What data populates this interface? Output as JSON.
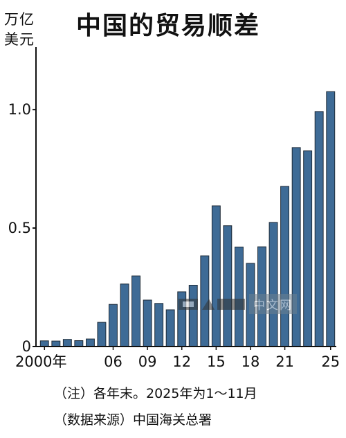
{
  "title": "中国的贸易顺差",
  "unit_label": "万亿\n美元",
  "notes": {
    "note1": "（注）各年末。2025年为1～11月",
    "note2": "（数据来源）中国海关总署"
  },
  "watermark": {
    "text": "中文网",
    "logo": "日经"
  },
  "colors": {
    "bar_fill": "#3e6b96",
    "bar_stroke": "#1e2a36",
    "axis": "#111111"
  },
  "chart_data": {
    "type": "bar",
    "title": "中国的贸易顺差",
    "ylabel": "万亿美元",
    "xlabel": "",
    "ylim": [
      0,
      1.1
    ],
    "grid": false,
    "x": [
      2000,
      2001,
      2002,
      2003,
      2004,
      2005,
      2006,
      2007,
      2008,
      2009,
      2010,
      2011,
      2012,
      2013,
      2014,
      2015,
      2016,
      2017,
      2018,
      2019,
      2020,
      2021,
      2022,
      2023,
      2024,
      2025
    ],
    "values": [
      0.024,
      0.023,
      0.03,
      0.025,
      0.032,
      0.102,
      0.178,
      0.264,
      0.298,
      0.196,
      0.182,
      0.155,
      0.231,
      0.259,
      0.383,
      0.594,
      0.51,
      0.42,
      0.351,
      0.421,
      0.524,
      0.676,
      0.84,
      0.826,
      0.992,
      1.076
    ],
    "x_tick_labels": [
      {
        "year": 2000,
        "label": "2000年"
      },
      {
        "year": 2006,
        "label": "06"
      },
      {
        "year": 2009,
        "label": "09"
      },
      {
        "year": 2012,
        "label": "12"
      },
      {
        "year": 2015,
        "label": "15"
      },
      {
        "year": 2018,
        "label": "18"
      },
      {
        "year": 2021,
        "label": "21"
      },
      {
        "year": 2025,
        "label": "25"
      }
    ],
    "y_ticks": [
      {
        "value": 0,
        "label": "0"
      },
      {
        "value": 0.5,
        "label": "0.5"
      },
      {
        "value": 1.0,
        "label": "1.0"
      }
    ]
  }
}
